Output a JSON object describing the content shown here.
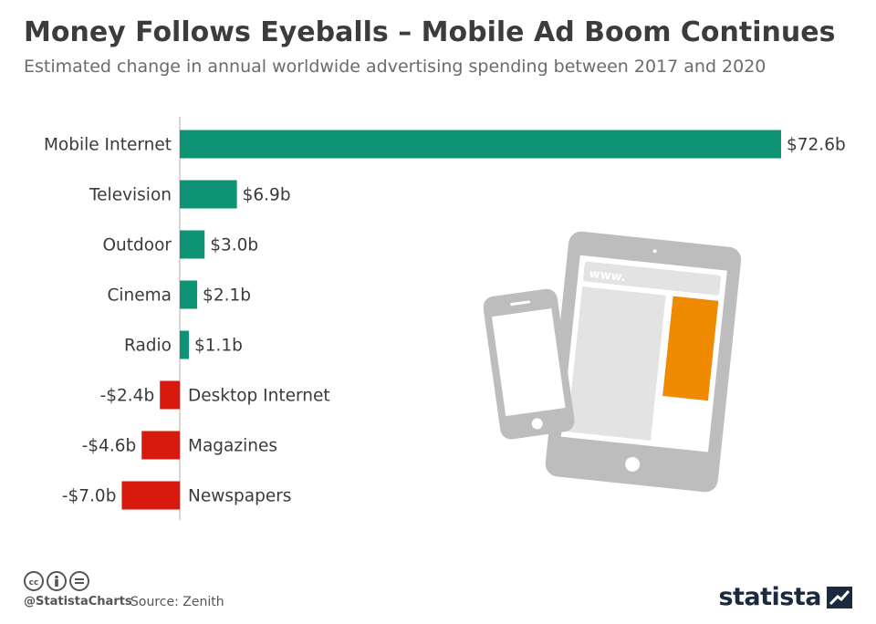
{
  "header": {
    "title": "Money Follows Eyeballs – Mobile Ad Boom Continues",
    "subtitle": "Estimated change in annual worldwide advertising spending between 2017 and 2020"
  },
  "chart_data": {
    "type": "bar",
    "orientation": "horizontal",
    "title": "Money Follows Eyeballs – Mobile Ad Boom Continues",
    "subtitle": "Estimated change in annual worldwide advertising spending between 2017 and 2020",
    "categories": [
      "Mobile Internet",
      "Television",
      "Outdoor",
      "Cinema",
      "Radio",
      "Desktop Internet",
      "Magazines",
      "Newspapers"
    ],
    "values": [
      72.6,
      6.9,
      3.0,
      2.1,
      1.1,
      -2.4,
      -4.6,
      -7.0
    ],
    "value_labels": [
      "$72.6b",
      "$6.9b",
      "$3.0b",
      "$2.1b",
      "$1.1b",
      "-$2.4b",
      "-$4.6b",
      "-$7.0b"
    ],
    "unit": "billion USD",
    "xlim": [
      -7.0,
      72.6
    ],
    "grid": false,
    "colors": {
      "positive": "#0e9474",
      "negative": "#d7190e"
    }
  },
  "illustration": {
    "browser_text": "www.",
    "colors": {
      "device": "#bdbdbd",
      "screen": "#e3e3e3",
      "accent": "#f08a00"
    }
  },
  "footer": {
    "handle": "@StatistaCharts",
    "source": "Source: Zenith",
    "brand": "statista"
  }
}
